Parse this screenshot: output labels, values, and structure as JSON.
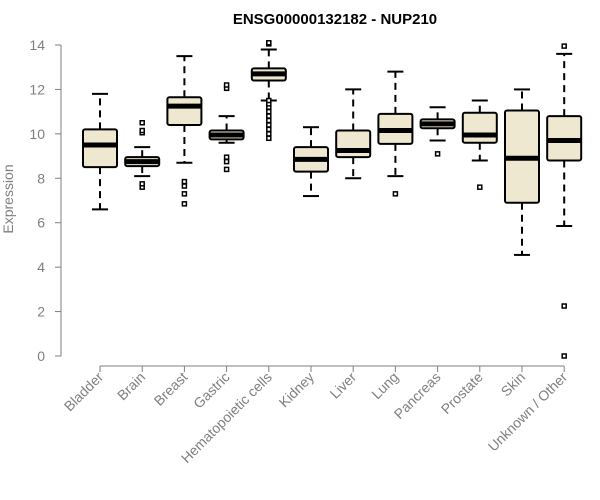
{
  "chart_data": {
    "type": "box",
    "title": "ENSG00000132182 - NUP210",
    "xlabel": "",
    "ylabel": "Expression",
    "ylim": [
      0,
      14
    ],
    "yticks": [
      0,
      2,
      4,
      6,
      8,
      10,
      12,
      14
    ],
    "grid": false,
    "box_fill": "#efe8d1",
    "box_stroke": "#000000",
    "axis_color": "#7f7f7f",
    "categories": [
      "Bladder",
      "Brain",
      "Breast",
      "Gastric",
      "Hematopoietic cells",
      "Kidney",
      "Liver",
      "Lung",
      "Pancreas",
      "Prostate",
      "Skin",
      "Unknown / Other"
    ],
    "boxes": [
      {
        "category": "Bladder",
        "whisker_low": 6.6,
        "q1": 8.5,
        "median": 9.5,
        "q3": 10.2,
        "whisker_high": 11.8,
        "outliers": []
      },
      {
        "category": "Brain",
        "whisker_low": 8.1,
        "q1": 8.55,
        "median": 8.75,
        "q3": 8.95,
        "whisker_high": 9.4,
        "outliers": [
          7.6,
          7.75,
          10.05,
          10.15,
          10.5
        ]
      },
      {
        "category": "Breast",
        "whisker_low": 8.7,
        "q1": 10.4,
        "median": 11.25,
        "q3": 11.65,
        "whisker_high": 13.5,
        "outliers": [
          6.85,
          7.3,
          7.65,
          7.85
        ]
      },
      {
        "category": "Gastric",
        "whisker_low": 9.6,
        "q1": 9.75,
        "median": 9.95,
        "q3": 10.15,
        "whisker_high": 10.8,
        "outliers": [
          8.4,
          8.75,
          8.95,
          12.05,
          12.2
        ]
      },
      {
        "category": "Hematopoietic cells",
        "whisker_low": 11.5,
        "q1": 12.4,
        "median": 12.7,
        "q3": 12.95,
        "whisker_high": 13.8,
        "outliers": [
          9.8,
          10.0,
          10.2,
          10.4,
          10.6,
          10.8,
          11.0,
          11.2,
          11.35,
          11.5,
          14.05,
          14.1
        ]
      },
      {
        "category": "Kidney",
        "whisker_low": 7.2,
        "q1": 8.3,
        "median": 8.85,
        "q3": 9.4,
        "whisker_high": 10.3,
        "outliers": []
      },
      {
        "category": "Liver",
        "whisker_low": 8.0,
        "q1": 8.95,
        "median": 9.25,
        "q3": 10.15,
        "whisker_high": 12.0,
        "outliers": []
      },
      {
        "category": "Lung",
        "whisker_low": 8.1,
        "q1": 9.55,
        "median": 10.15,
        "q3": 10.9,
        "whisker_high": 12.8,
        "outliers": [
          7.3
        ]
      },
      {
        "category": "Pancreas",
        "whisker_low": 9.7,
        "q1": 10.25,
        "median": 10.45,
        "q3": 10.65,
        "whisker_high": 11.2,
        "outliers": [
          9.1
        ]
      },
      {
        "category": "Prostate",
        "whisker_low": 8.8,
        "q1": 9.6,
        "median": 9.95,
        "q3": 10.95,
        "whisker_high": 11.5,
        "outliers": [
          7.6
        ]
      },
      {
        "category": "Skin",
        "whisker_low": 4.55,
        "q1": 6.9,
        "median": 8.9,
        "q3": 11.05,
        "whisker_high": 12.0,
        "outliers": []
      },
      {
        "category": "Unknown / Other",
        "whisker_low": 5.85,
        "q1": 8.8,
        "median": 9.7,
        "q3": 10.8,
        "whisker_high": 13.6,
        "outliers": [
          0.0,
          2.25,
          13.95
        ]
      }
    ]
  }
}
